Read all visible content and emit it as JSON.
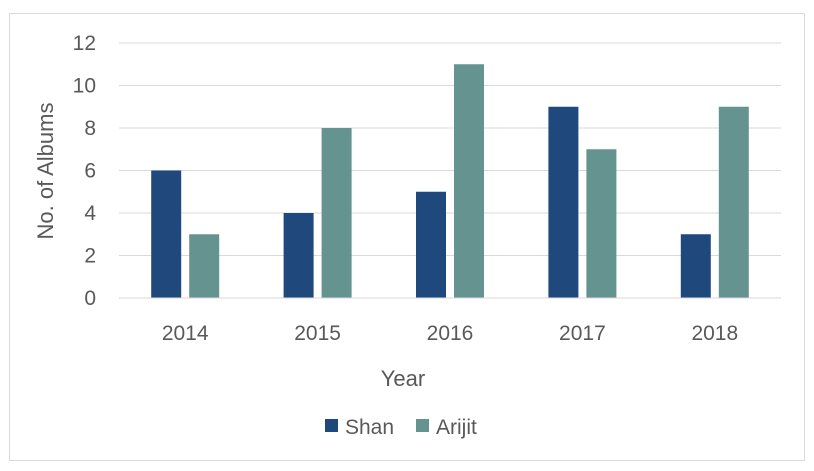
{
  "chart_data": {
    "type": "bar",
    "title": "",
    "xlabel": "Year",
    "ylabel": "No. of Albums",
    "categories": [
      "2014",
      "2015",
      "2016",
      "2017",
      "2018"
    ],
    "series": [
      {
        "name": "Shan",
        "values": [
          6,
          4,
          5,
          9,
          3
        ],
        "color": "#1f497d"
      },
      {
        "name": "Arijit",
        "values": [
          3,
          8,
          11,
          7,
          9
        ],
        "color": "#65938f"
      }
    ],
    "ylim": [
      0,
      12
    ],
    "yticks": [
      "0",
      "2",
      "4",
      "6",
      "8",
      "10",
      "12"
    ],
    "grid": true,
    "legend_position": "bottom"
  }
}
